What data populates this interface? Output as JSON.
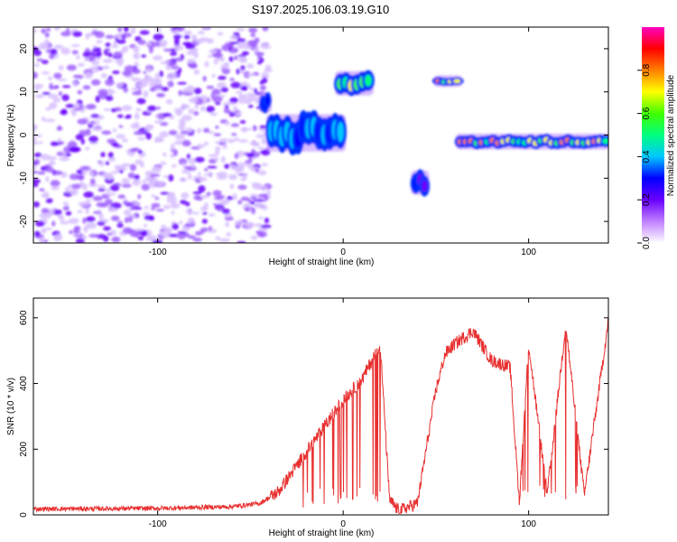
{
  "title": "S197.2025.106.03.19.G10",
  "chart_data": [
    {
      "type": "heatmap",
      "xlabel": "Height of straight line (km)",
      "ylabel": "Frequency (Hz)",
      "xlim": [
        -167,
        143
      ],
      "ylim": [
        -25,
        25
      ],
      "xticks": [
        -100,
        0,
        100
      ],
      "yticks": [
        -20,
        -10,
        0,
        10,
        20
      ],
      "colorbar": {
        "label": "Normalized spectral amplitude",
        "range": [
          0,
          1
        ],
        "ticks": [
          0.0,
          0.2,
          0.4,
          0.6,
          0.8
        ],
        "colors": [
          "#ffffff",
          "#c080ff",
          "#6a00ff",
          "#0000ff",
          "#00c8ff",
          "#00ff80",
          "#40ff00",
          "#ffff00",
          "#ff8000",
          "#ff0000",
          "#ff00c0"
        ]
      },
      "features": [
        {
          "x": [
            -167,
            -40
          ],
          "y": [
            -25,
            25
          ],
          "amplitude": 0.15,
          "kind": "noise"
        },
        {
          "x": [
            -44,
            -40
          ],
          "y": [
            6,
            9
          ],
          "amplitude": 0.35
        },
        {
          "x": [
            -40,
            0
          ],
          "y": [
            -3,
            4
          ],
          "amplitude": 0.45
        },
        {
          "x": [
            -3,
            15
          ],
          "y": [
            10,
            14
          ],
          "amplitude": 0.7
        },
        {
          "x": [
            38,
            45
          ],
          "y": [
            -13,
            -9
          ],
          "amplitude": 0.3
        },
        {
          "x": [
            50,
            63
          ],
          "y": [
            12,
            13
          ],
          "amplitude": 0.95
        },
        {
          "x": [
            62,
            143
          ],
          "y": [
            -2.5,
            -0.5
          ],
          "amplitude": 0.85
        }
      ]
    },
    {
      "type": "line",
      "xlabel": "Height of straight line (km)",
      "ylabel": "SNR (10 * v/v)",
      "xlim": [
        -167,
        143
      ],
      "ylim": [
        0,
        660
      ],
      "xticks": [
        -100,
        0,
        100
      ],
      "yticks": [
        0,
        200,
        400,
        600
      ],
      "color": "#e83030",
      "x": [
        -167,
        -100,
        -60,
        -45,
        -35,
        -20,
        -10,
        0,
        10,
        20,
        25,
        30,
        40,
        50,
        55,
        60,
        70,
        80,
        90,
        95,
        100,
        110,
        120,
        130,
        143
      ],
      "y": [
        18,
        20,
        25,
        35,
        70,
        190,
        270,
        350,
        410,
        520,
        45,
        12,
        35,
        380,
        490,
        520,
        560,
        470,
        450,
        40,
        520,
        60,
        580,
        60,
        590
      ]
    }
  ]
}
